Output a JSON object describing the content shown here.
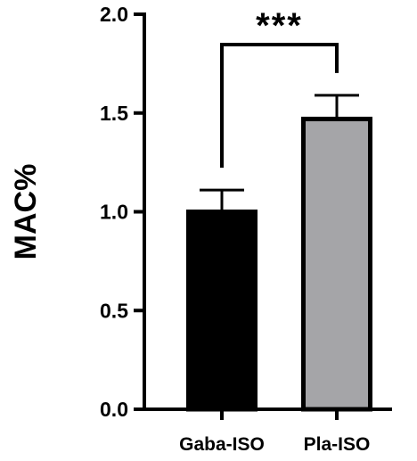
{
  "chart_data": {
    "type": "bar",
    "categories": [
      "Gaba-ISO",
      "Pla-ISO"
    ],
    "values": [
      1.0,
      1.47
    ],
    "errors": [
      0.11,
      0.12
    ],
    "xlabel": "",
    "ylabel": "MAC%",
    "ylim": [
      0,
      2.0
    ],
    "yticks": [
      "0.0",
      "0.5",
      "1.0",
      "1.5",
      "2.0"
    ],
    "bar_colors": [
      "#000000",
      "#a5a5a8"
    ],
    "grid": false,
    "legend": "none",
    "annotation": {
      "text": "***",
      "between": [
        "Gaba-ISO",
        "Pla-ISO"
      ]
    }
  }
}
